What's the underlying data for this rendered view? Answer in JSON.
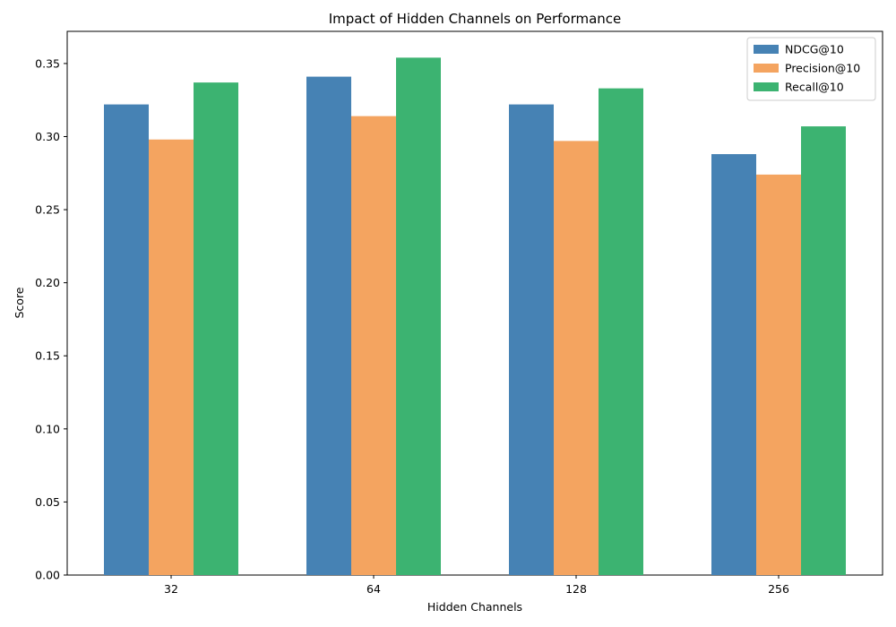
{
  "chart_data": {
    "type": "bar",
    "title": "Impact of Hidden Channels on Performance",
    "xlabel": "Hidden Channels",
    "ylabel": "Score",
    "categories": [
      "32",
      "64",
      "128",
      "256"
    ],
    "series": [
      {
        "name": "NDCG@10",
        "values": [
          0.322,
          0.341,
          0.322,
          0.288
        ],
        "color": "#4682b4"
      },
      {
        "name": "Precision@10",
        "values": [
          0.298,
          0.314,
          0.297,
          0.274
        ],
        "color": "#f4a460"
      },
      {
        "name": "Recall@10",
        "values": [
          0.337,
          0.354,
          0.333,
          0.307
        ],
        "color": "#3cb371"
      }
    ],
    "ylim": [
      0,
      0.372
    ],
    "yticks": [
      0.0,
      0.05,
      0.1,
      0.15,
      0.2,
      0.25,
      0.3,
      0.35
    ],
    "ytick_labels": [
      "0.00",
      "0.05",
      "0.10",
      "0.15",
      "0.20",
      "0.25",
      "0.30",
      "0.35"
    ],
    "grid": false,
    "legend_position": "top-right"
  }
}
